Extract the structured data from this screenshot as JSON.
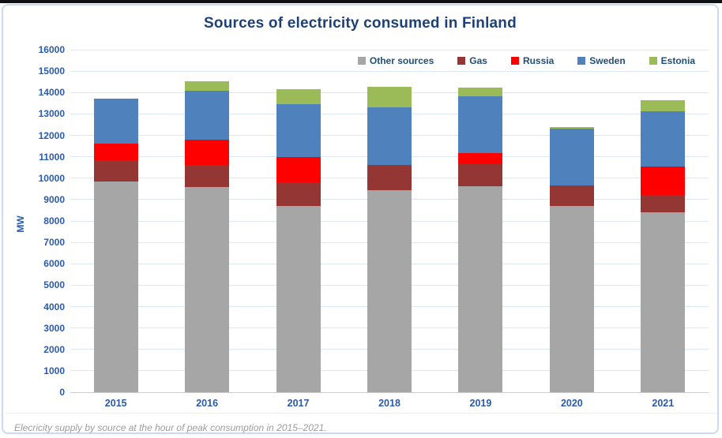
{
  "title": "Sources of electricity consumed in Finland",
  "y_axis_label": "MW",
  "caption": "Elecricity supply by source at the hour of peak consumption in 2015–2021.",
  "colors": {
    "other_sources": "#A6A6A6",
    "gas": "#943634",
    "russia": "#FF0000",
    "sweden": "#4F81BD",
    "estonia": "#9BBB59",
    "title_text": "#1D4077",
    "axis_text": "#2A5AA8",
    "gridline": "#DCE7F5"
  },
  "chart_data": {
    "type": "bar",
    "stacked": true,
    "title": "Sources of electricity consumed in Finland",
    "xlabel": "",
    "ylabel": "MW",
    "ylim": [
      0,
      16000
    ],
    "ytick_step": 1000,
    "grid": true,
    "legend_position": "top-right",
    "categories": [
      "2015",
      "2016",
      "2017",
      "2018",
      "2019",
      "2020",
      "2021"
    ],
    "series": [
      {
        "name": "Other sources",
        "color": "#A6A6A6",
        "values": [
          9850,
          9600,
          8700,
          9450,
          9630,
          8700,
          8400
        ]
      },
      {
        "name": "Gas",
        "color": "#943634",
        "values": [
          1000,
          1000,
          1100,
          1150,
          1010,
          950,
          830
        ]
      },
      {
        "name": "Russia",
        "color": "#FF0000",
        "values": [
          750,
          1200,
          1200,
          0,
          530,
          0,
          1320
        ]
      },
      {
        "name": "Sweden",
        "color": "#4F81BD",
        "values": [
          2100,
          2300,
          2450,
          2700,
          2660,
          2650,
          2570
        ]
      },
      {
        "name": "Estonia",
        "color": "#9BBB59",
        "values": [
          0,
          430,
          690,
          960,
          400,
          100,
          530
        ]
      }
    ],
    "totals": [
      13700,
      14530,
      14140,
      14260,
      14230,
      12400,
      13650
    ]
  }
}
